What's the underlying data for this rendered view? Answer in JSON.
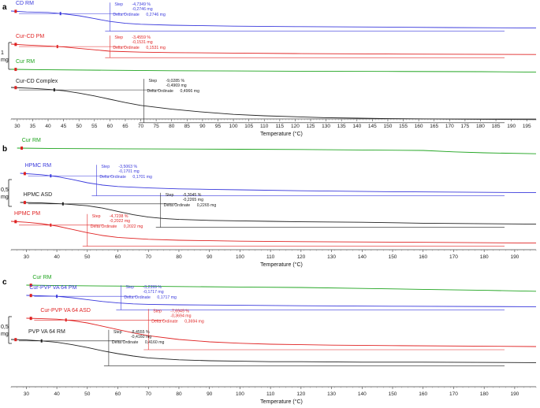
{
  "temperature_label": "Temperature (°C)",
  "colors": {
    "blue": "#3a3adc",
    "red": "#e02424",
    "green": "#1fa41f",
    "black": "#222222"
  },
  "chart_data": [
    {
      "type": "line",
      "panel": "a",
      "xlabel": "Temperature (°C)",
      "xlim": [
        28,
        198
      ],
      "x_ticks": [
        30,
        35,
        40,
        45,
        50,
        55,
        60,
        65,
        70,
        75,
        80,
        85,
        90,
        95,
        100,
        105,
        110,
        115,
        120,
        125,
        130,
        135,
        140,
        145,
        150,
        155,
        160,
        165,
        170,
        175,
        180,
        185,
        190,
        195
      ],
      "scale_bar": {
        "value": "1",
        "unit": "mg"
      },
      "series": [
        {
          "name": "CD RM",
          "color": "blue",
          "x": [
            28,
            33,
            40,
            45,
            50,
            55,
            60,
            65,
            70,
            80,
            90,
            100,
            120,
            150,
            170,
            198
          ],
          "y": [
            0.0,
            -0.02,
            -0.03,
            -0.06,
            -0.1,
            -0.16,
            -0.22,
            -0.26,
            -0.28,
            -0.3,
            -0.31,
            -0.32,
            -0.33,
            -0.34,
            -0.35,
            -0.36
          ],
          "step": {
            "onset": 44,
            "end": 60,
            "lines": [
              "Step",
              "-4,7349 %",
              "-0,2746 mg",
              "Delta Ordinate",
              "0,2746 mg"
            ]
          }
        },
        {
          "name": "Cur-CD PM",
          "color": "red",
          "x": [
            28,
            33,
            40,
            45,
            50,
            55,
            60,
            70,
            80,
            100,
            120,
            150,
            198
          ],
          "y": [
            0.0,
            -0.02,
            -0.04,
            -0.06,
            -0.09,
            -0.12,
            -0.15,
            -0.17,
            -0.18,
            -0.19,
            -0.2,
            -0.21,
            -0.22
          ],
          "step": {
            "onset": 43,
            "end": 60,
            "lines": [
              "Step",
              "-3,4559 %",
              "-0,1531 mg",
              "Delta Ordinate",
              "0,1531 mg"
            ]
          }
        },
        {
          "name": "Cur RM",
          "color": "green",
          "x": [
            28,
            40,
            60,
            80,
            100,
            120,
            150,
            180,
            198
          ],
          "y": [
            0.0,
            -0.01,
            -0.02,
            -0.03,
            -0.035,
            -0.04,
            -0.045,
            -0.05,
            -0.06
          ]
        },
        {
          "name": "Cur-CD Complex",
          "color": "black",
          "x": [
            28,
            35,
            40,
            45,
            50,
            55,
            60,
            65,
            70,
            80,
            90,
            100,
            110,
            120,
            130,
            140,
            150,
            170,
            198
          ],
          "y": [
            0.0,
            -0.02,
            -0.04,
            -0.07,
            -0.12,
            -0.18,
            -0.25,
            -0.32,
            -0.38,
            -0.46,
            -0.52,
            -0.57,
            -0.6,
            -0.62,
            -0.64,
            -0.65,
            -0.66,
            -0.67,
            -0.68
          ],
          "step": {
            "onset": 42,
            "end": 71,
            "lines": [
              "Step",
              "-9,0285 %",
              "-0,4969 mg",
              "Delta Ordinate",
              "0,4966 mg"
            ]
          }
        }
      ]
    },
    {
      "type": "line",
      "panel": "b",
      "xlabel": "Temperature (°C)",
      "xlim": [
        25,
        197
      ],
      "x_ticks": [
        30,
        40,
        50,
        60,
        70,
        80,
        90,
        100,
        110,
        120,
        130,
        140,
        150,
        160,
        170,
        180,
        190
      ],
      "scale_bar": {
        "value": "0,5",
        "unit": "mg"
      },
      "series": [
        {
          "name": "Cur RM",
          "color": "green",
          "x": [
            27,
            40,
            60,
            80,
            100,
            120,
            140,
            160,
            170,
            180,
            197
          ],
          "y": [
            0.0,
            -0.01,
            -0.015,
            -0.02,
            -0.025,
            -0.03,
            -0.04,
            -0.05,
            -0.08,
            -0.1,
            -0.12
          ]
        },
        {
          "name": "HPMC RM",
          "color": "blue",
          "x": [
            28,
            35,
            40,
            45,
            50,
            55,
            60,
            70,
            80,
            90,
            100,
            120,
            150,
            197
          ],
          "y": [
            0.0,
            -0.03,
            -0.07,
            -0.13,
            -0.2,
            -0.25,
            -0.28,
            -0.31,
            -0.33,
            -0.34,
            -0.35,
            -0.37,
            -0.39,
            -0.41
          ],
          "step": {
            "onset": 38,
            "end": 53,
            "lines": [
              "Step",
              "-3,5063 %",
              "-0,1701 mg",
              "Delta Ordinate",
              "0,1701 mg"
            ]
          }
        },
        {
          "name": "HPMC ASD",
          "color": "black",
          "x": [
            28,
            35,
            42,
            50,
            55,
            60,
            65,
            70,
            75,
            80,
            90,
            100,
            110,
            120,
            140,
            160,
            197
          ],
          "y": [
            0.0,
            -0.01,
            -0.03,
            -0.07,
            -0.12,
            -0.19,
            -0.26,
            -0.31,
            -0.34,
            -0.36,
            -0.38,
            -0.39,
            -0.4,
            -0.41,
            -0.42,
            -0.44,
            -0.46
          ],
          "step": {
            "onset": 42,
            "end": 74,
            "lines": [
              "Step",
              "-5,3045 %",
              "-0,2265 mg",
              "Delta Ordinate",
              "0,2265 mg"
            ]
          }
        },
        {
          "name": "HPMC PM",
          "color": "red",
          "x": [
            25,
            30,
            35,
            40,
            45,
            50,
            55,
            60,
            70,
            80,
            90,
            100,
            120,
            150,
            197
          ],
          "y": [
            0.0,
            -0.02,
            -0.05,
            -0.1,
            -0.17,
            -0.24,
            -0.3,
            -0.34,
            -0.38,
            -0.4,
            -0.41,
            -0.42,
            -0.43,
            -0.44,
            -0.46
          ],
          "step": {
            "onset": 38,
            "end": 50,
            "lines": [
              "Step",
              "-4,7238 %",
              "-0,2022 mg",
              "Delta Ordinate",
              "0,2022 mg"
            ]
          }
        }
      ]
    },
    {
      "type": "line",
      "panel": "c",
      "xlabel": "Temperature (°C)",
      "xlim": [
        25,
        197
      ],
      "x_ticks": [
        30,
        40,
        50,
        60,
        70,
        80,
        90,
        100,
        110,
        120,
        130,
        140,
        150,
        160,
        170,
        180,
        190
      ],
      "scale_bar": {
        "value": "0,5",
        "unit": "mg"
      },
      "series": [
        {
          "name": "Cur RM",
          "color": "green",
          "x": [
            30,
            40,
            60,
            80,
            100,
            120,
            140,
            160,
            180,
            197
          ],
          "y": [
            0.0,
            -0.01,
            -0.02,
            -0.03,
            -0.04,
            -0.05,
            -0.07,
            -0.09,
            -0.11,
            -0.13
          ]
        },
        {
          "name": "Cur-PVP VA 64 PM",
          "color": "blue",
          "x": [
            30,
            40,
            45,
            50,
            55,
            60,
            65,
            70,
            80,
            100,
            120,
            150,
            197
          ],
          "y": [
            0.0,
            -0.02,
            -0.05,
            -0.09,
            -0.13,
            -0.16,
            -0.18,
            -0.19,
            -0.2,
            -0.21,
            -0.22,
            -0.23,
            -0.24
          ],
          "step": {
            "onset": 40,
            "end": 61,
            "lines": [
              "Step",
              "-3,2399 %",
              "-0,1717 mg",
              "Delta Ordinate",
              "0,1717 mg"
            ]
          }
        },
        {
          "name": "Cur-PVP VA 64 ASD",
          "color": "red",
          "x": [
            30,
            35,
            40,
            45,
            50,
            55,
            60,
            65,
            70,
            80,
            90,
            100,
            110,
            120,
            130,
            150,
            197
          ],
          "y": [
            0.0,
            -0.01,
            -0.02,
            -0.05,
            -0.1,
            -0.17,
            -0.24,
            -0.31,
            -0.37,
            -0.45,
            -0.5,
            -0.53,
            -0.55,
            -0.56,
            -0.57,
            -0.58,
            -0.6
          ],
          "step": {
            "onset": 43,
            "end": 70,
            "lines": [
              "Step",
              "-7,6949 %",
              "-0,3694 mg",
              "Delta Ordinate",
              "0,3694 mg"
            ]
          }
        },
        {
          "name": "PVP VA 64 RM",
          "color": "black",
          "x": [
            25,
            30,
            35,
            40,
            45,
            50,
            55,
            60,
            65,
            70,
            80,
            90,
            100,
            110,
            120,
            140,
            160,
            197
          ],
          "y": [
            0.0,
            -0.01,
            -0.03,
            -0.06,
            -0.11,
            -0.17,
            -0.24,
            -0.3,
            -0.35,
            -0.39,
            -0.43,
            -0.45,
            -0.46,
            -0.47,
            -0.47,
            -0.48,
            -0.48,
            -0.49
          ],
          "step": {
            "onset": 35,
            "end": 57,
            "lines": [
              "Step",
              "-8,4555 %",
              "-0,4160 mg",
              "Delta Ordinate",
              "0,4160 mg"
            ]
          }
        }
      ]
    }
  ]
}
